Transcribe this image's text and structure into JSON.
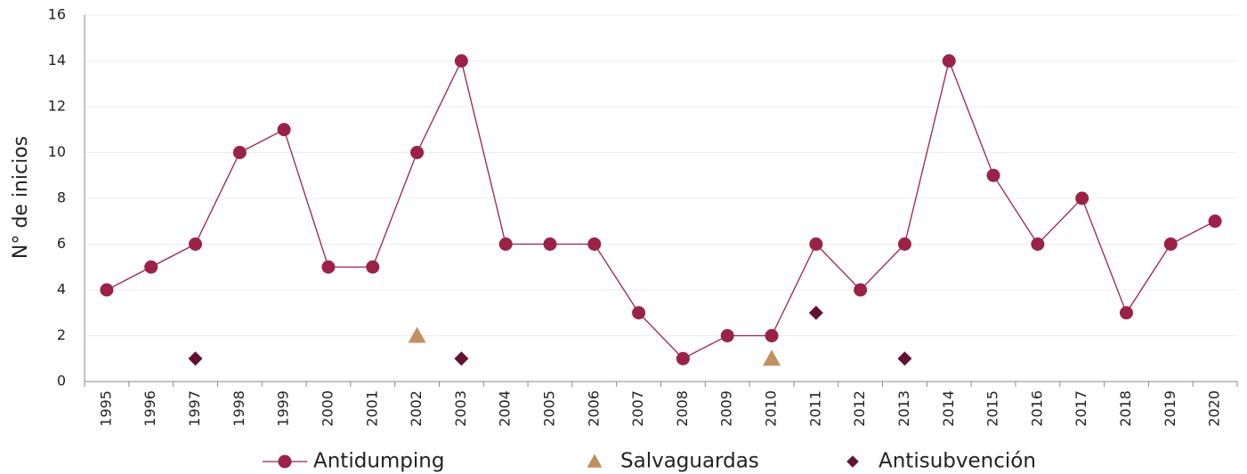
{
  "chart_data": {
    "type": "line",
    "y_label": "N° de inicios",
    "categories": [
      "1995",
      "1996",
      "1997",
      "1998",
      "1999",
      "2000",
      "2001",
      "2002",
      "2003",
      "2004",
      "2005",
      "2006",
      "2007",
      "2008",
      "2009",
      "2010",
      "2011",
      "2012",
      "2013",
      "2014",
      "2015",
      "2016",
      "2017",
      "2018",
      "2019",
      "2020"
    ],
    "series": [
      {
        "name": "Antidumping",
        "color": "#9b2247",
        "marker": "circle",
        "line": true,
        "values": [
          4,
          5,
          6,
          10,
          11,
          5,
          5,
          10,
          14,
          6,
          6,
          6,
          3,
          1,
          2,
          2,
          6,
          4,
          6,
          14,
          9,
          6,
          8,
          3,
          6,
          7
        ]
      },
      {
        "name": "Salvaguardas",
        "color": "#c0915f",
        "marker": "triangle",
        "line": false,
        "values": [
          null,
          null,
          null,
          null,
          null,
          null,
          null,
          2,
          null,
          null,
          null,
          null,
          null,
          null,
          null,
          1,
          null,
          null,
          null,
          null,
          null,
          null,
          null,
          null,
          null,
          null
        ]
      },
      {
        "name": "Antisubvención",
        "color": "#611232",
        "marker": "diamond",
        "line": false,
        "values": [
          null,
          null,
          1,
          null,
          null,
          null,
          null,
          null,
          1,
          null,
          null,
          null,
          null,
          null,
          null,
          null,
          3,
          null,
          1,
          null,
          null,
          null,
          null,
          null,
          null,
          null
        ]
      }
    ],
    "ylim": [
      0,
      16
    ],
    "yticks": [
      0,
      2,
      4,
      6,
      8,
      10,
      12,
      14,
      16
    ],
    "grid": true,
    "legend": "bottom"
  }
}
